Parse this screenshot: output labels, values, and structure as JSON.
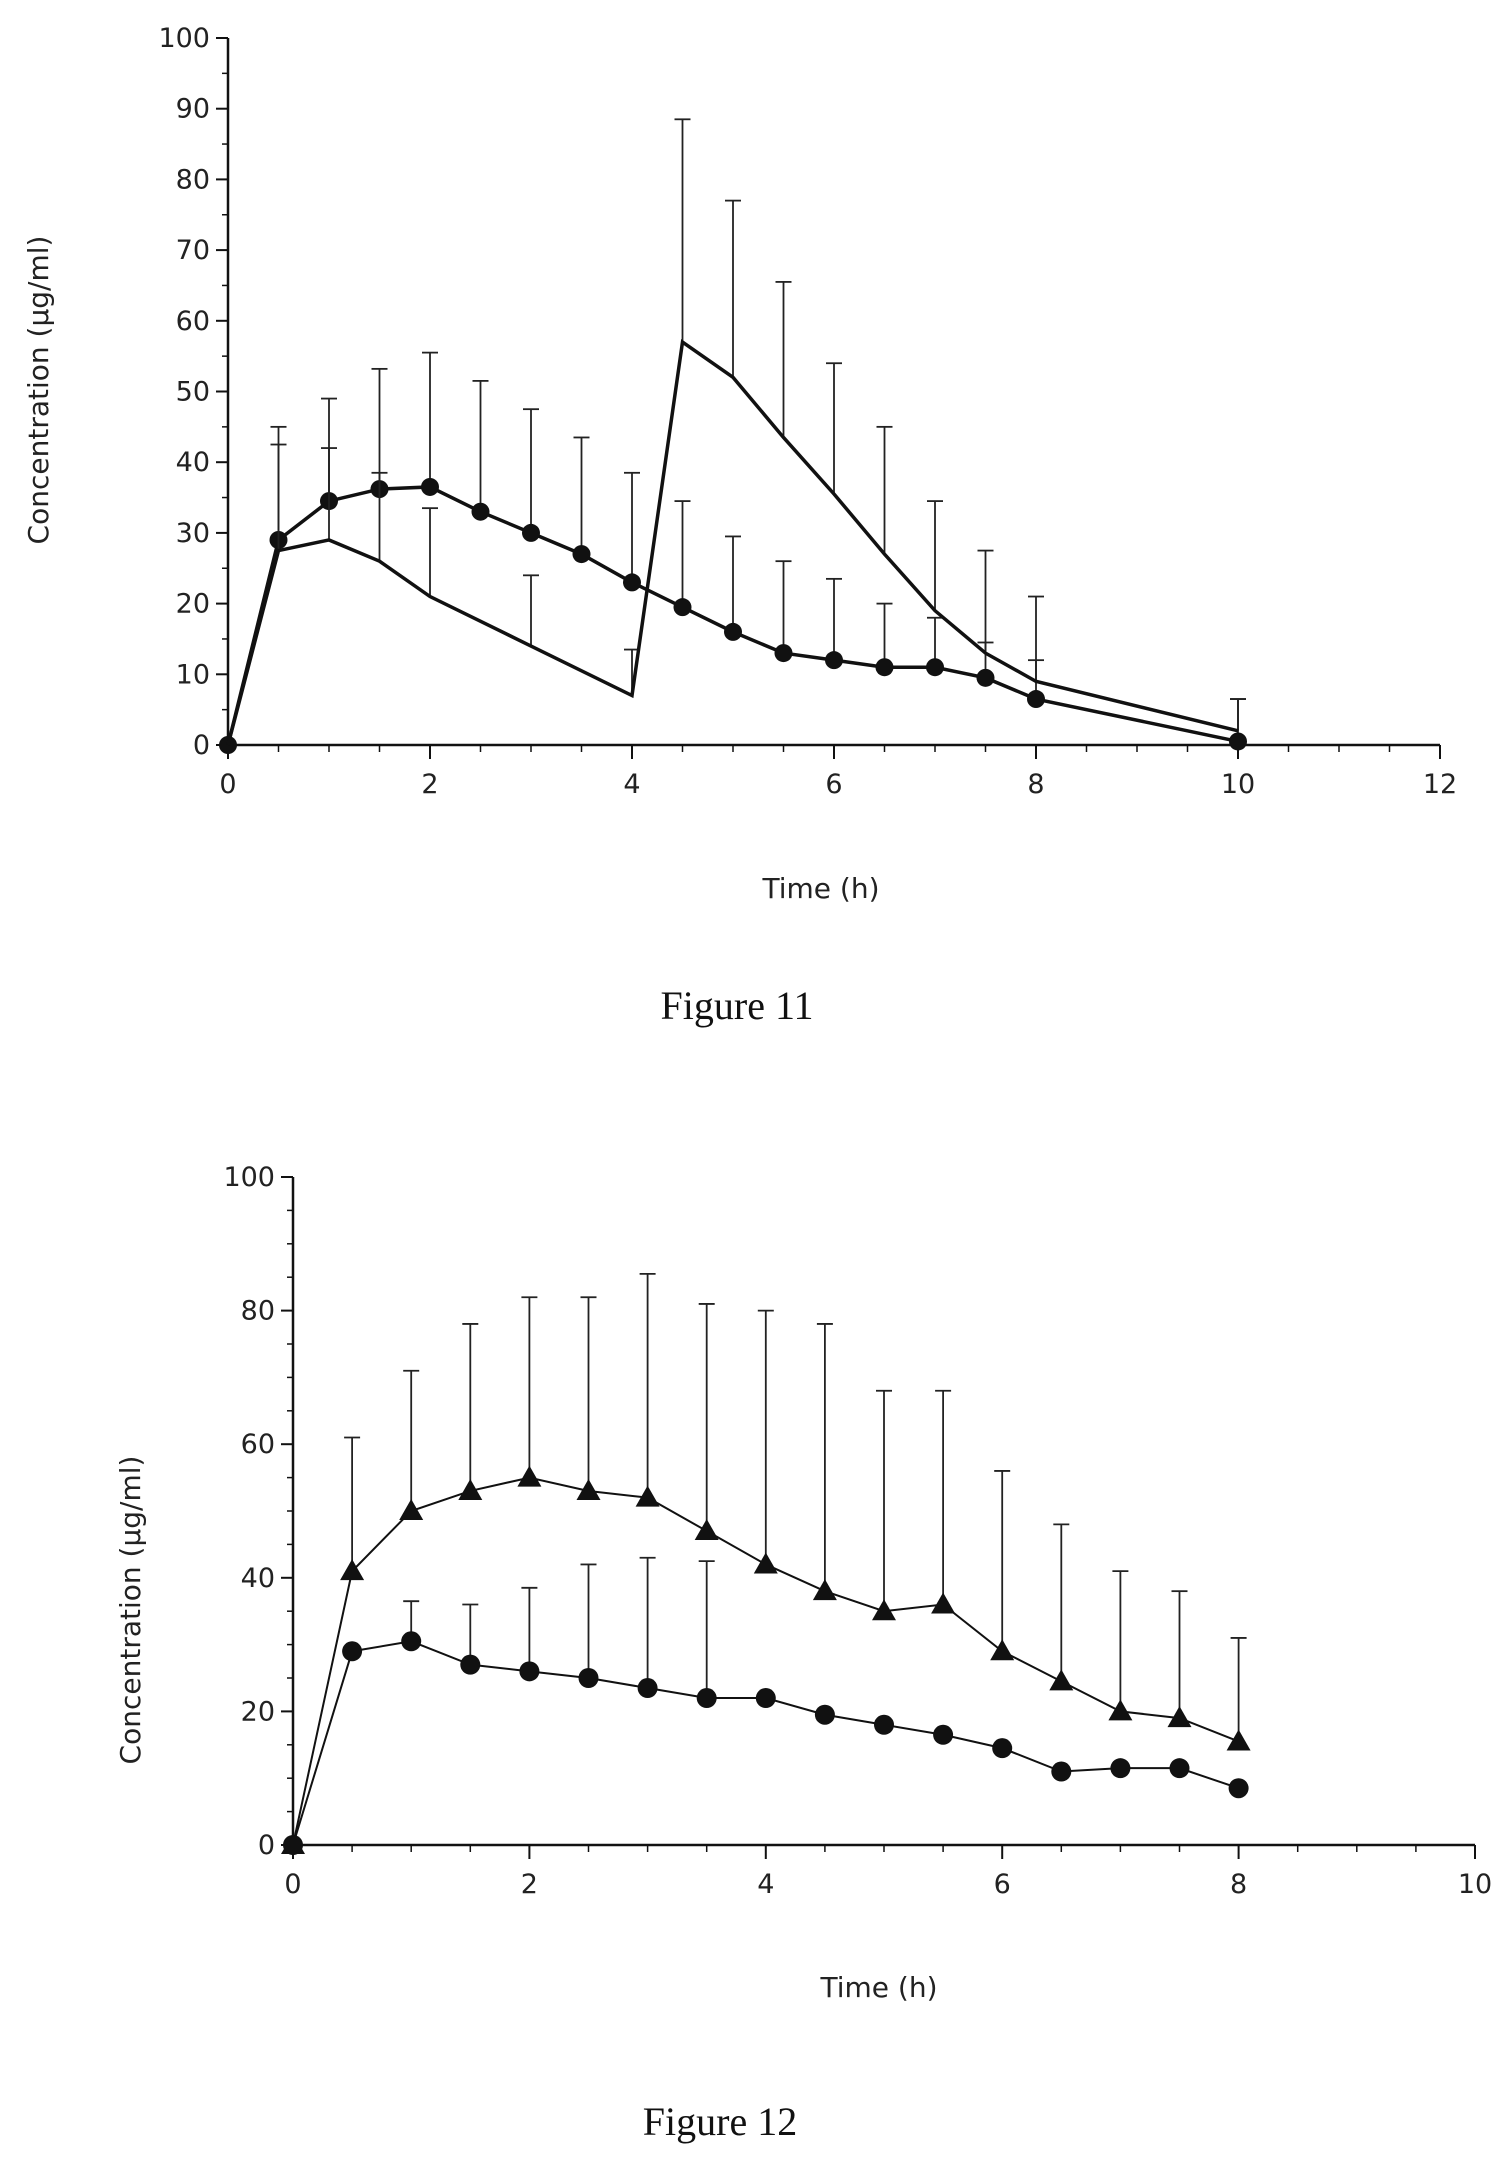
{
  "figures": [
    {
      "caption": "Figure 11"
    },
    {
      "caption": "Figure 12"
    }
  ],
  "chart_data": [
    {
      "type": "line",
      "title": "",
      "xlabel": "Time (h)",
      "ylabel": "Concentration (µg/ml)",
      "xlim": [
        0,
        12
      ],
      "ylim": [
        0,
        100
      ],
      "xticks": [
        0,
        2,
        4,
        6,
        8,
        10,
        12
      ],
      "yticks": [
        0,
        10,
        20,
        30,
        40,
        50,
        60,
        70,
        80,
        90,
        100
      ],
      "grid": false,
      "error_bars": "upper",
      "series": [
        {
          "marker": "circle",
          "x": [
            0,
            0.5,
            1,
            1.5,
            2,
            2.5,
            3,
            3.5,
            4,
            4.5,
            5,
            5.5,
            6,
            6.5,
            7,
            7.5,
            8,
            10
          ],
          "y": [
            0,
            29,
            34.5,
            36.2,
            36.5,
            33,
            30,
            27,
            23,
            19.5,
            16,
            13,
            12,
            11,
            11,
            9.5,
            6.5,
            0.5
          ],
          "error": [
            0,
            16,
            14.5,
            17,
            19,
            18.5,
            17.5,
            16.5,
            15.5,
            15,
            13.5,
            13,
            11.5,
            9,
            7,
            5,
            5.5,
            6
          ]
        },
        {
          "marker": "none",
          "x": [
            0,
            0.5,
            1,
            1.5,
            2,
            3,
            4,
            4.5,
            5,
            5.5,
            6,
            6.5,
            7,
            7.5,
            8,
            10
          ],
          "y": [
            0,
            27.5,
            29,
            26,
            21,
            14,
            7,
            57,
            52,
            43.5,
            35.5,
            27,
            19,
            13,
            9,
            2
          ],
          "error": [
            0,
            15,
            13,
            12.5,
            12.5,
            10,
            6.5,
            31.5,
            25,
            22,
            18.5,
            18,
            15.5,
            14.5,
            12,
            4.5
          ]
        }
      ]
    },
    {
      "type": "line",
      "title": "",
      "xlabel": "Time (h)",
      "ylabel": "Concentration (µg/ml)",
      "xlim": [
        0,
        10
      ],
      "ylim": [
        0,
        100
      ],
      "xticks": [
        0,
        2,
        4,
        6,
        8,
        10
      ],
      "yticks": [
        0,
        20,
        40,
        60,
        80,
        100
      ],
      "grid": false,
      "error_bars": "upper",
      "series": [
        {
          "marker": "triangle",
          "x": [
            0,
            0.5,
            1,
            1.5,
            2,
            2.5,
            3,
            3.5,
            4,
            4.5,
            5,
            5.5,
            6,
            6.5,
            7,
            7.5,
            8
          ],
          "y": [
            0,
            41,
            50,
            53,
            55,
            53,
            52,
            47,
            42,
            38,
            35,
            36,
            29,
            24.5,
            20,
            19,
            15.5
          ],
          "error": [
            0,
            20,
            21,
            25,
            27,
            29,
            33.5,
            34,
            38,
            40,
            33,
            32,
            27,
            23.5,
            21,
            19,
            15.5
          ]
        },
        {
          "marker": "circle",
          "x": [
            0,
            0.5,
            1,
            1.5,
            2,
            2.5,
            3,
            3.5,
            4,
            4.5,
            5,
            5.5,
            6,
            6.5,
            7,
            7.5,
            8
          ],
          "y": [
            0,
            29,
            30.5,
            27,
            26,
            25,
            23.5,
            22,
            22,
            19.5,
            18,
            16.5,
            14.5,
            11,
            11.5,
            11.5,
            8.5
          ],
          "error": [
            0,
            0,
            6,
            9,
            12.5,
            17,
            19.5,
            20.5,
            0,
            0,
            0,
            0,
            0,
            0,
            0,
            0,
            0
          ]
        }
      ]
    }
  ]
}
